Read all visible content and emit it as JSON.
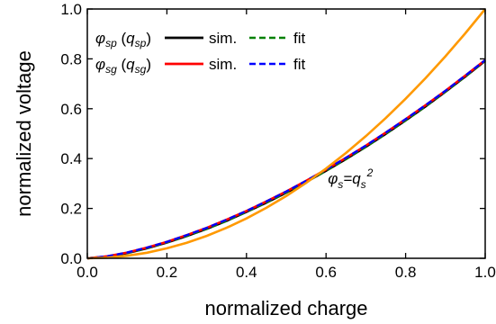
{
  "chart_data": {
    "type": "line",
    "xlabel": "normalized charge",
    "ylabel": "normalized voltage",
    "xlim": [
      0.0,
      1.0
    ],
    "ylim": [
      0.0,
      1.0
    ],
    "x_ticks": [
      "0.0",
      "0.2",
      "0.4",
      "0.6",
      "0.8",
      "1.0"
    ],
    "y_ticks": [
      "0.0",
      "0.2",
      "0.4",
      "0.6",
      "0.8",
      "1.0"
    ],
    "grid": false,
    "legend_position": "top-left",
    "series": [
      {
        "name": "φsp (qsp) sim.",
        "color": "#000000",
        "dash": "solid",
        "x": [
          0,
          0.05,
          0.1,
          0.15,
          0.2,
          0.25,
          0.3,
          0.35,
          0.4,
          0.45,
          0.5,
          0.55,
          0.6,
          0.65,
          0.7,
          0.75,
          0.8,
          0.85,
          0.9,
          0.95,
          1.0
        ],
        "y": [
          0,
          0.007,
          0.021,
          0.04,
          0.063,
          0.089,
          0.118,
          0.15,
          0.186,
          0.223,
          0.263,
          0.306,
          0.351,
          0.398,
          0.447,
          0.499,
          0.553,
          0.609,
          0.668,
          0.729,
          0.792
        ]
      },
      {
        "name": "φsp (qsp) fit",
        "color": "#008000",
        "dash": "dashed",
        "x": [
          0,
          0.05,
          0.1,
          0.15,
          0.2,
          0.25,
          0.3,
          0.35,
          0.4,
          0.45,
          0.5,
          0.55,
          0.6,
          0.65,
          0.7,
          0.75,
          0.8,
          0.85,
          0.9,
          0.95,
          1.0
        ],
        "y": [
          0,
          0.007,
          0.021,
          0.04,
          0.063,
          0.089,
          0.118,
          0.15,
          0.186,
          0.223,
          0.263,
          0.306,
          0.351,
          0.398,
          0.447,
          0.499,
          0.553,
          0.609,
          0.668,
          0.729,
          0.792
        ]
      },
      {
        "name": "φsg (qsg) sim.",
        "color": "#ff0000",
        "dash": "solid",
        "x": [
          0,
          0.05,
          0.1,
          0.15,
          0.2,
          0.25,
          0.3,
          0.35,
          0.4,
          0.45,
          0.5,
          0.55,
          0.6,
          0.65,
          0.7,
          0.75,
          0.8,
          0.85,
          0.9,
          0.95,
          1.0
        ],
        "y": [
          0,
          0.008,
          0.023,
          0.043,
          0.066,
          0.093,
          0.122,
          0.155,
          0.19,
          0.228,
          0.268,
          0.311,
          0.356,
          0.403,
          0.452,
          0.504,
          0.558,
          0.614,
          0.672,
          0.733,
          0.795
        ]
      },
      {
        "name": "φsg (qsg) fit",
        "color": "#0000ff",
        "dash": "dashed",
        "x": [
          0,
          0.05,
          0.1,
          0.15,
          0.2,
          0.25,
          0.3,
          0.35,
          0.4,
          0.45,
          0.5,
          0.55,
          0.6,
          0.65,
          0.7,
          0.75,
          0.8,
          0.85,
          0.9,
          0.95,
          1.0
        ],
        "y": [
          0,
          0.008,
          0.023,
          0.043,
          0.066,
          0.093,
          0.122,
          0.155,
          0.19,
          0.228,
          0.268,
          0.311,
          0.356,
          0.403,
          0.452,
          0.504,
          0.558,
          0.614,
          0.672,
          0.733,
          0.795
        ]
      },
      {
        "name": "φs=qs²",
        "color": "#ff9900",
        "dash": "solid",
        "x": [
          0,
          0.05,
          0.1,
          0.15,
          0.2,
          0.25,
          0.3,
          0.35,
          0.4,
          0.45,
          0.5,
          0.55,
          0.6,
          0.65,
          0.7,
          0.75,
          0.8,
          0.85,
          0.9,
          0.95,
          1.0
        ],
        "y": [
          0,
          0.0025,
          0.01,
          0.0225,
          0.04,
          0.0625,
          0.09,
          0.1225,
          0.16,
          0.2025,
          0.25,
          0.3025,
          0.36,
          0.4225,
          0.49,
          0.5625,
          0.64,
          0.7225,
          0.81,
          0.9025,
          1.0
        ]
      }
    ],
    "legend": {
      "rows": [
        {
          "phi_sub": "sp",
          "q_sub": "sp",
          "sim_label": "sim.",
          "fit_label": "fit",
          "sim_color": "#000000",
          "fit_color": "#008000"
        },
        {
          "phi_sub": "sg",
          "q_sub": "sg",
          "sim_label": "sim.",
          "fit_label": "fit",
          "sim_color": "#ff0000",
          "fit_color": "#0000ff"
        }
      ]
    },
    "annotation": {
      "phi": "φ",
      "phi_sub": "s",
      "eq": "=q",
      "q_sub": "s",
      "power": "2",
      "x": 0.6,
      "y": 0.3
    }
  }
}
